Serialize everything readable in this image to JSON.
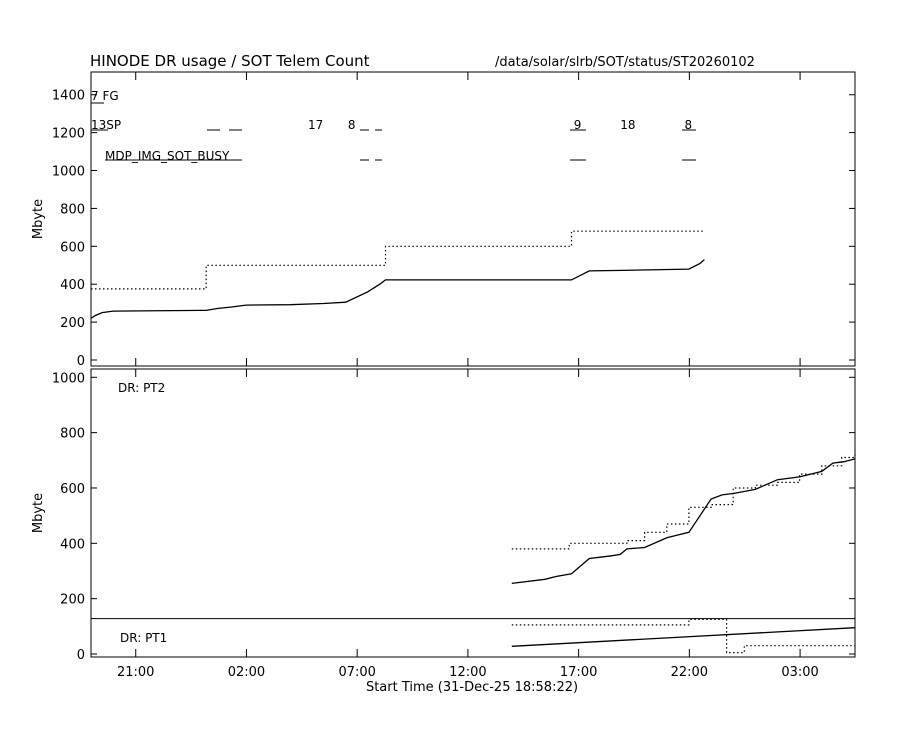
{
  "chart_data": {
    "type": "line",
    "title": "HINODE DR usage / SOT Telem Count",
    "path": "/data/solar/slrb/SOT/status/ST20260102",
    "xlabel": "Start Time (31-Dec-25 18:58:22)",
    "x_ticks": [
      "21:00",
      "02:00",
      "07:00",
      "12:00",
      "17:00",
      "22:00",
      "03:00"
    ],
    "x_range_hours": [
      0,
      34.5
    ],
    "panels": [
      {
        "id": "telem",
        "ylabel": "Mbyte",
        "ylim": [
          0,
          1520
        ],
        "yticks": [
          "0",
          "200",
          "400",
          "600",
          "800",
          "1000",
          "1200",
          "1400"
        ],
        "labels": [
          "7 FG",
          "13SP",
          "MDP_IMG_SOT_BUSY"
        ],
        "annotations": [
          {
            "text": "17",
            "x": 9.8,
            "y": 1240
          },
          {
            "text": "8",
            "x": 11.6,
            "y": 1240
          },
          {
            "text": "9",
            "x": 21.8,
            "y": 1240
          },
          {
            "text": "18",
            "x": 23.9,
            "y": 1240
          },
          {
            "text": "8",
            "x": 26.8,
            "y": 1240
          }
        ],
        "series": [
          {
            "style": "solid",
            "points": [
              [
                0,
                220
              ],
              [
                0.2,
                235
              ],
              [
                0.5,
                250
              ],
              [
                1,
                258
              ],
              [
                5,
                262
              ],
              [
                5.2,
                262
              ],
              [
                5.7,
                272
              ],
              [
                6.4,
                280
              ],
              [
                7,
                290
              ],
              [
                9,
                292
              ],
              [
                10.5,
                298
              ],
              [
                11.5,
                305
              ],
              [
                12.5,
                360
              ],
              [
                13.1,
                405
              ],
              [
                13.3,
                423
              ],
              [
                21.7,
                423
              ],
              [
                22.5,
                470
              ],
              [
                24,
                473
              ],
              [
                27,
                480
              ],
              [
                27.5,
                510
              ],
              [
                27.7,
                530
              ]
            ]
          },
          {
            "style": "dotted",
            "points": [
              [
                0,
                375
              ],
              [
                5.2,
                375
              ],
              [
                5.2,
                500
              ],
              [
                13.3,
                500
              ],
              [
                13.3,
                600
              ],
              [
                21.7,
                600
              ],
              [
                21.7,
                680
              ],
              [
                27.7,
                680
              ]
            ]
          }
        ]
      },
      {
        "id": "dr",
        "ylabel": "Mbyte",
        "ylim": [
          0,
          1030
        ],
        "yticks": [
          "0",
          "200",
          "400",
          "600",
          "800",
          "1000"
        ],
        "labels": [
          "DR: PT2",
          "DR: PT1"
        ],
        "pt1_threshold": 128,
        "series": [
          {
            "name": "PT2",
            "style": "solid",
            "points": [
              [
                19,
                255
              ],
              [
                20.5,
                270
              ],
              [
                21,
                280
              ],
              [
                21.7,
                290
              ],
              [
                22.5,
                345
              ],
              [
                23,
                350
              ],
              [
                23.5,
                355
              ],
              [
                23.9,
                360
              ],
              [
                24.2,
                380
              ],
              [
                25,
                385
              ],
              [
                26,
                420
              ],
              [
                26.5,
                430
              ],
              [
                27,
                440
              ],
              [
                28,
                560
              ],
              [
                28.5,
                575
              ],
              [
                29,
                580
              ],
              [
                30,
                595
              ],
              [
                31,
                630
              ],
              [
                32,
                640
              ],
              [
                33,
                660
              ],
              [
                33.5,
                690
              ],
              [
                34,
                695
              ],
              [
                34.5,
                705
              ]
            ]
          },
          {
            "name": "PT2 count",
            "style": "dotted",
            "points": [
              [
                19,
                380
              ],
              [
                21.6,
                380
              ],
              [
                21.6,
                400
              ],
              [
                24.2,
                400
              ],
              [
                24.2,
                410
              ],
              [
                25,
                410
              ],
              [
                25,
                440
              ],
              [
                26,
                440
              ],
              [
                26,
                470
              ],
              [
                27,
                470
              ],
              [
                27,
                530
              ],
              [
                28,
                530
              ],
              [
                28,
                540
              ],
              [
                29,
                540
              ],
              [
                29,
                600
              ],
              [
                30,
                600
              ],
              [
                30,
                610
              ],
              [
                31,
                610
              ],
              [
                31,
                620
              ],
              [
                32,
                620
              ],
              [
                32,
                650
              ],
              [
                33,
                650
              ],
              [
                33,
                680
              ],
              [
                33.9,
                680
              ],
              [
                33.9,
                710
              ],
              [
                34.5,
                710
              ],
              [
                34.5,
                720
              ]
            ]
          },
          {
            "name": "PT1",
            "style": "solid",
            "points": [
              [
                19,
                28
              ],
              [
                34.5,
                95
              ]
            ]
          },
          {
            "name": "PT1 count",
            "style": "dotted",
            "points": [
              [
                19,
                105
              ],
              [
                27,
                105
              ],
              [
                27,
                125
              ],
              [
                28.7,
                125
              ],
              [
                28.7,
                5
              ],
              [
                29.5,
                5
              ],
              [
                29.5,
                30
              ],
              [
                34.5,
                30
              ]
            ]
          }
        ]
      }
    ]
  }
}
